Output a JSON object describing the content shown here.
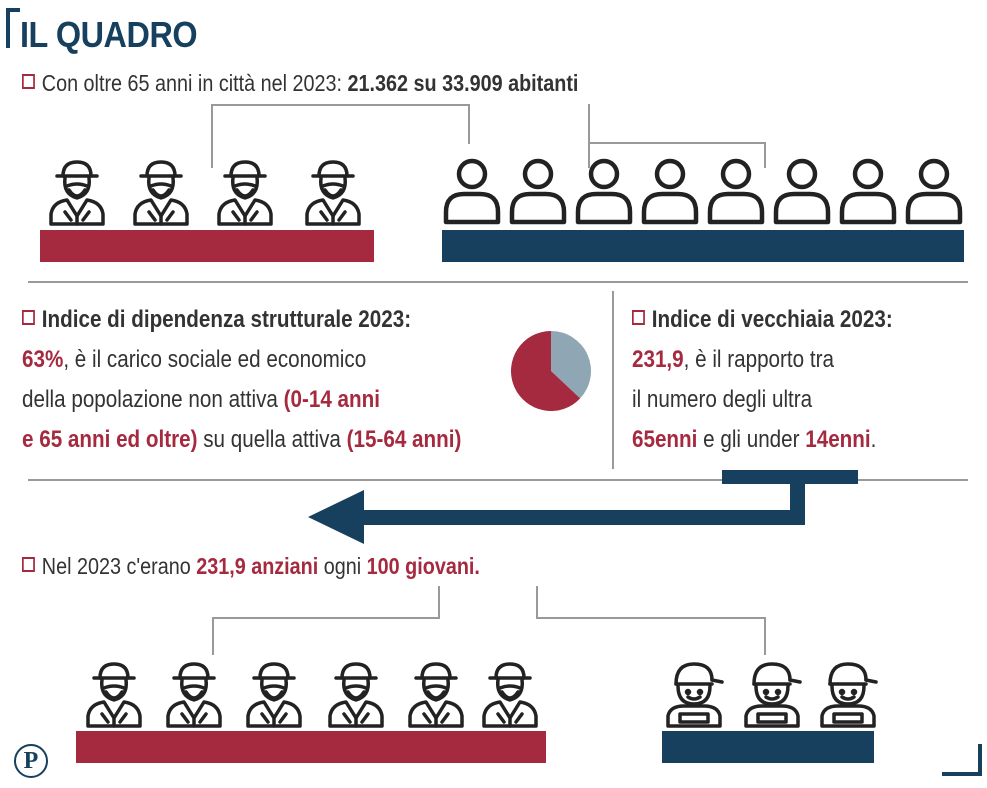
{
  "header": {
    "title": "IL QUADRO"
  },
  "population": {
    "prefix": "Con oltre 65 anni in città nel 2023: ",
    "value_old": "21.362",
    "middle": " su ",
    "value_total": "33.909 abitanti",
    "elderly_count": 21362,
    "total_count": 33909
  },
  "dependency": {
    "heading": "Indice di dipendenza strutturale 2023:",
    "value": "63%",
    "line1_rest": ", è il carico sociale ed economico",
    "line2_a": "della popolazione non attiva ",
    "line2_b": "(0-14 anni",
    "line3_a": "e 65 anni ed oltre)",
    "line3_b": " su quella attiva ",
    "line3_c": "(15-64 anni)",
    "percent": 63
  },
  "ageing": {
    "heading": "Indice di vecchiaia 2023:",
    "value": "231,9",
    "line1_rest": ", è il rapporto tra",
    "line2": "il numero degli ultra",
    "line3_a": "65enni",
    "line3_b": " e gli under ",
    "line3_c": "14enni",
    "line3_d": "."
  },
  "ratio": {
    "prefix": "Nel 2023 c'erano ",
    "elderly": "231,9 anziani",
    "middle": " ogni ",
    "young": "100 giovani."
  },
  "icons": {
    "elderly": "elderly-person-icon",
    "person": "person-outline-icon",
    "child": "child-with-cap-icon",
    "logo": "publisher-logo-icon"
  },
  "colors": {
    "red": "#a52a3f",
    "navy": "#16405e",
    "grey": "#8fa6b4"
  },
  "logo": {
    "letter": "P"
  }
}
